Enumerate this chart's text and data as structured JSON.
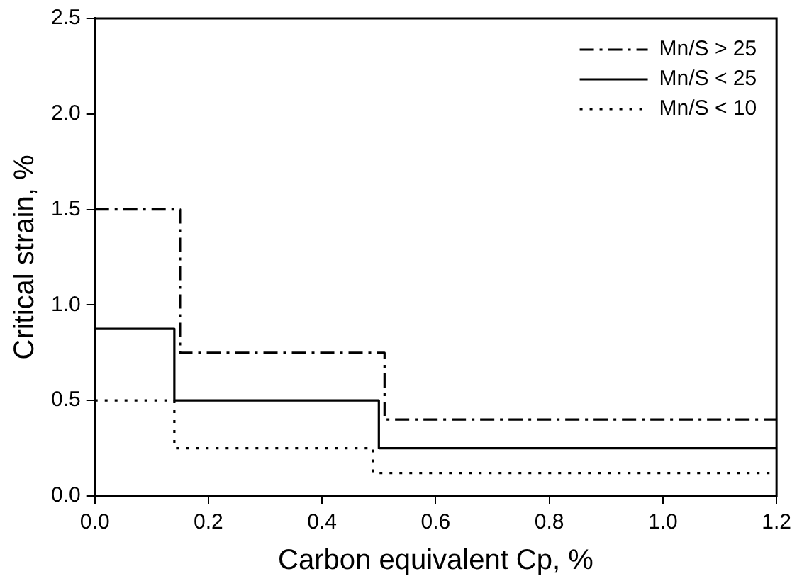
{
  "chart_data": {
    "type": "step",
    "xlabel": "Carbon equivalent Cp, %",
    "ylabel": "Critical strain, %",
    "xlim": [
      0,
      1.2
    ],
    "xticks": [
      {
        "value": 0,
        "label": "0.0"
      },
      {
        "value": 0.2,
        "label": "0.2"
      },
      {
        "value": 0.4,
        "label": "0.4"
      },
      {
        "value": 0.6,
        "label": "0.6"
      },
      {
        "value": 0.8,
        "label": "0.8"
      },
      {
        "value": 1,
        "label": "1.0"
      },
      {
        "value": 1.2,
        "label": "1.2"
      }
    ],
    "ylim": [
      0,
      2.5
    ],
    "yticks": [
      {
        "value": 0,
        "label": "0.0"
      },
      {
        "value": 0.5,
        "label": "0.5"
      },
      {
        "value": 1,
        "label": "1.0"
      },
      {
        "value": 1.5,
        "label": "1.5"
      },
      {
        "value": 2,
        "label": "2.0"
      },
      {
        "value": 2.5,
        "label": "2.5"
      }
    ],
    "grid": false,
    "legend": "top right",
    "marker": "none",
    "series": [
      {
        "name": "Mn/S > 25",
        "color": "#000000",
        "line_style": "dashed",
        "x": [
          0,
          0.15,
          0.51,
          1.2
        ],
        "values": [
          1.5,
          0.75,
          0.4,
          0.4
        ]
      },
      {
        "name": "Mn/S < 25",
        "color": "#000000",
        "line_style": "solid",
        "x": [
          0,
          0.14,
          0.5,
          1.2
        ],
        "values": [
          0.875,
          0.5,
          0.25,
          0.25
        ]
      },
      {
        "name": "Mn/S < 10",
        "color": "#000000",
        "line_style": "dotted",
        "x": [
          0,
          0.14,
          0.49,
          1.2
        ],
        "values": [
          0.5,
          0.25,
          0.12,
          0.12
        ]
      }
    ]
  }
}
